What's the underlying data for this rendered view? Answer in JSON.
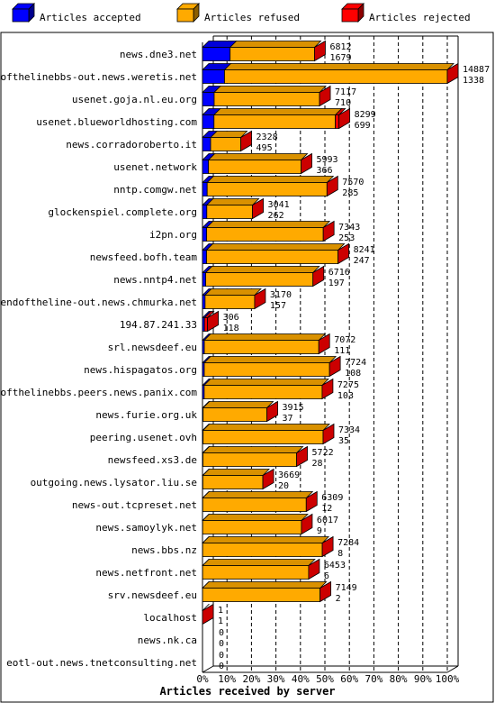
{
  "chart_data": {
    "type": "bar",
    "orientation": "horizontal",
    "stacked": true,
    "xlabel": "Articles received by server",
    "xlim": [
      0,
      100
    ],
    "x_ticks": [
      "0%",
      "10%",
      "20%",
      "30%",
      "40%",
      "50%",
      "60%",
      "70%",
      "80%",
      "90%",
      "100%"
    ],
    "grid": "vertical dashed",
    "legend_position": "top",
    "legend": [
      {
        "key": "accepted",
        "label": "Articles accepted",
        "color": "#0000ff"
      },
      {
        "key": "refused",
        "label": "Articles refused",
        "color": "#ffaa00"
      },
      {
        "key": "rejected",
        "label": "Articles rejected",
        "color": "#ff0000"
      }
    ],
    "rows": [
      {
        "server": "news.dne3.net",
        "total": 6812,
        "accepted": 1679,
        "refused": 5133,
        "rejected": 0
      },
      {
        "server": "endofthelinebbs-out.news.weretis.net",
        "total": 14887,
        "accepted": 1338,
        "refused": 13549,
        "rejected": 0
      },
      {
        "server": "usenet.goja.nl.eu.org",
        "total": 7117,
        "accepted": 710,
        "refused": 6407,
        "rejected": 0
      },
      {
        "server": "usenet.blueworldhosting.com",
        "total": 8299,
        "accepted": 699,
        "refused": 7380,
        "rejected": 220
      },
      {
        "server": "news.corradoroberto.it",
        "total": 2328,
        "accepted": 495,
        "refused": 1833,
        "rejected": 0
      },
      {
        "server": "usenet.network",
        "total": 5993,
        "accepted": 366,
        "refused": 5627,
        "rejected": 0
      },
      {
        "server": "nntp.comgw.net",
        "total": 7570,
        "accepted": 285,
        "refused": 7285,
        "rejected": 0
      },
      {
        "server": "glockenspiel.complete.org",
        "total": 3041,
        "accepted": 262,
        "refused": 2779,
        "rejected": 0
      },
      {
        "server": "i2pn.org",
        "total": 7343,
        "accepted": 253,
        "refused": 7090,
        "rejected": 0
      },
      {
        "server": "newsfeed.bofh.team",
        "total": 8241,
        "accepted": 247,
        "refused": 7994,
        "rejected": 0
      },
      {
        "server": "news.nntp4.net",
        "total": 6716,
        "accepted": 197,
        "refused": 6519,
        "rejected": 0
      },
      {
        "server": "endoftheline-out.news.chmurka.net",
        "total": 3170,
        "accepted": 157,
        "refused": 3013,
        "rejected": 0
      },
      {
        "server": "194.87.241.33",
        "total": 306,
        "accepted": 118,
        "refused": 0,
        "rejected": 188
      },
      {
        "server": "srl.newsdeef.eu",
        "total": 7072,
        "accepted": 111,
        "refused": 6961,
        "rejected": 0
      },
      {
        "server": "news.hispagatos.org",
        "total": 7724,
        "accepted": 108,
        "refused": 7616,
        "rejected": 0
      },
      {
        "server": "endofthelinebbs.peers.news.panix.com",
        "total": 7275,
        "accepted": 103,
        "refused": 7172,
        "rejected": 0
      },
      {
        "server": "news.furie.org.uk",
        "total": 3915,
        "accepted": 37,
        "refused": 3878,
        "rejected": 0
      },
      {
        "server": "peering.usenet.ovh",
        "total": 7334,
        "accepted": 35,
        "refused": 7299,
        "rejected": 0
      },
      {
        "server": "newsfeed.xs3.de",
        "total": 5722,
        "accepted": 28,
        "refused": 5694,
        "rejected": 0
      },
      {
        "server": "outgoing.news.lysator.liu.se",
        "total": 3669,
        "accepted": 20,
        "refused": 3649,
        "rejected": 0
      },
      {
        "server": "news-out.tcpreset.net",
        "total": 6309,
        "accepted": 12,
        "refused": 6297,
        "rejected": 0
      },
      {
        "server": "news.samoylyk.net",
        "total": 6017,
        "accepted": 9,
        "refused": 6008,
        "rejected": 0
      },
      {
        "server": "news.bbs.nz",
        "total": 7284,
        "accepted": 8,
        "refused": 7276,
        "rejected": 0
      },
      {
        "server": "news.netfront.net",
        "total": 6453,
        "accepted": 6,
        "refused": 6447,
        "rejected": 0
      },
      {
        "server": "srv.newsdeef.eu",
        "total": 7149,
        "accepted": 2,
        "refused": 7147,
        "rejected": 0
      },
      {
        "server": "localhost",
        "total": 1,
        "accepted": 1,
        "refused": 0,
        "rejected": 0
      },
      {
        "server": "news.nk.ca",
        "total": 0,
        "accepted": 0,
        "refused": 0,
        "rejected": 0
      },
      {
        "server": "eotl-out.news.tnetconsulting.net",
        "total": 0,
        "accepted": 0,
        "refused": 0,
        "rejected": 0
      }
    ]
  }
}
